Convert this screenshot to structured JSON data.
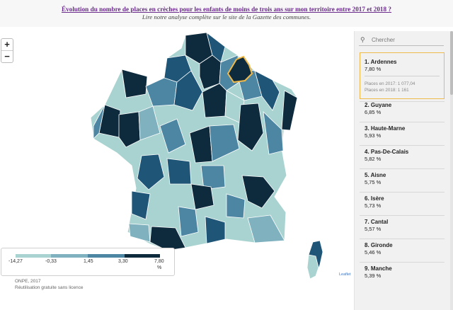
{
  "header": {
    "title": "Évolution du nombre de places en crèches pour les enfants de moins de trois ans sur mon territoire entre 2017 et 2018 ?",
    "subtitle": "Lire notre analyse complète sur le site de la Gazette des communes."
  },
  "zoom": {
    "in": "+",
    "out": "−"
  },
  "search": {
    "icon": "magnifier-icon",
    "placeholder": "Chercher"
  },
  "legend": {
    "ticks": [
      "-14,27",
      "-0,33",
      "1,45",
      "3,30",
      "7,80"
    ],
    "unit": "%",
    "colors": [
      "#a9d3d0",
      "#7fb1be",
      "#4d86a2",
      "#1f5677",
      "#0e2b3d"
    ]
  },
  "map": {
    "highlight_color": "#f0b94b",
    "corse_label": "Corse"
  },
  "attribution": "Leaflet",
  "source": [
    "ONPE, 2017",
    "Réutilisation gratuite sans licence"
  ],
  "ranking": {
    "selected": {
      "name": "1. Ardennes",
      "value": "7,80 %",
      "detail_2017": "Places en 2017: 1 077,04",
      "detail_2018": "Places en 2018: 1 161"
    },
    "items": [
      {
        "name": "2. Guyane",
        "value": "6,85 %"
      },
      {
        "name": "3. Haute-Marne",
        "value": "5,93 %"
      },
      {
        "name": "4. Pas-De-Calais",
        "value": "5,82 %"
      },
      {
        "name": "5. Aisne",
        "value": "5,75 %"
      },
      {
        "name": "6. Isère",
        "value": "5,73 %"
      },
      {
        "name": "7. Cantal",
        "value": "5,57 %"
      },
      {
        "name": "8. Gironde",
        "value": "5,46 %"
      },
      {
        "name": "9. Manche",
        "value": "5,39 %"
      }
    ]
  }
}
